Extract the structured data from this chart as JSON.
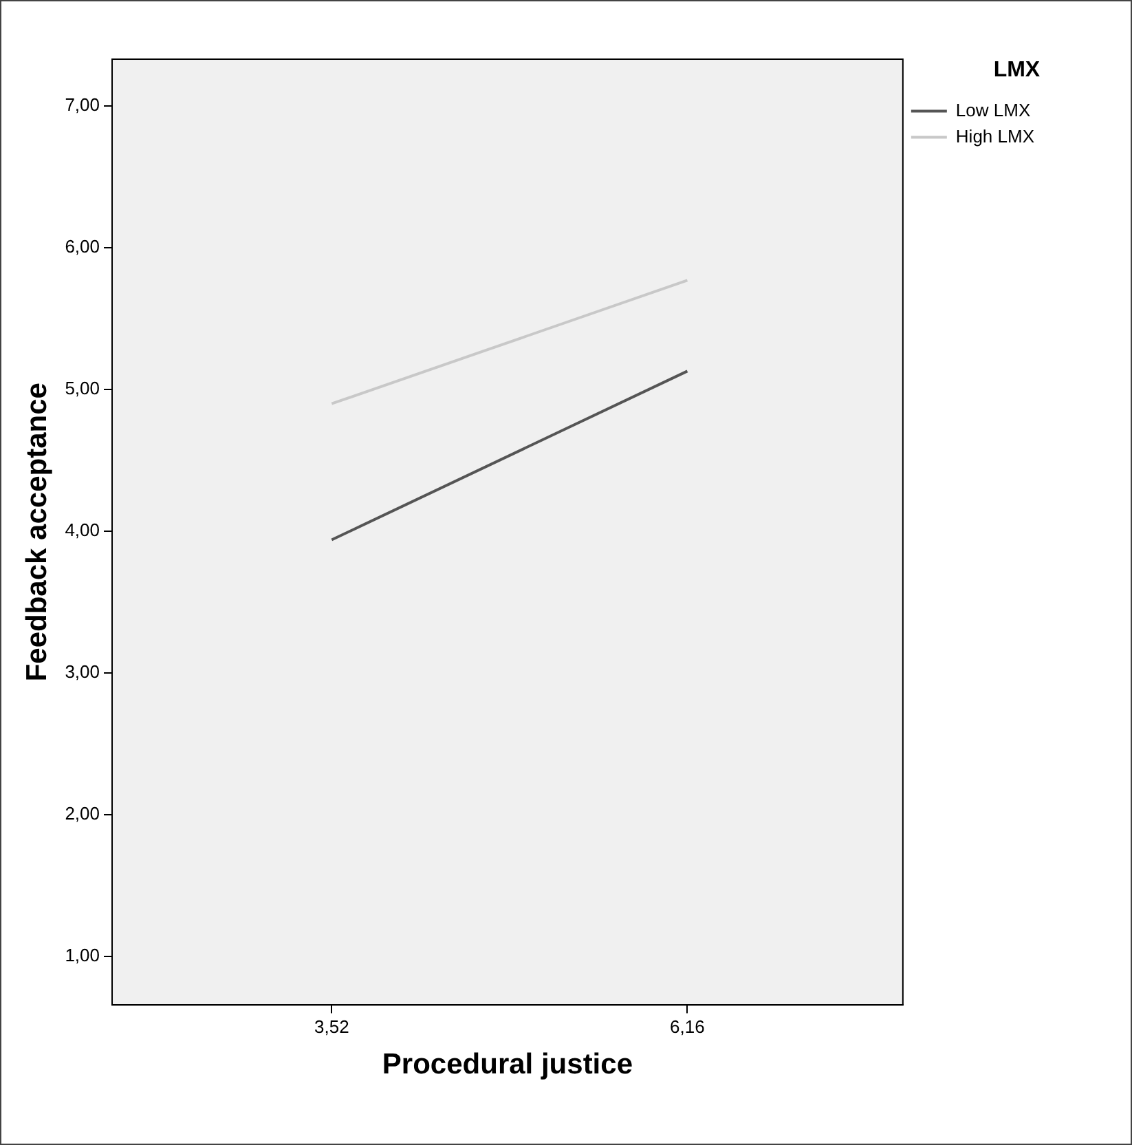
{
  "chart_data": {
    "type": "line",
    "xlabel": "Procedural justice",
    "ylabel": "Feedback acceptance",
    "legend_title": "LMX",
    "legend": "top right",
    "grid": false,
    "marker": "none",
    "line_style": "solid",
    "xlim": [
      1.89,
      7.76
    ],
    "xticks": [
      {
        "value": 3.52,
        "label": "3,52"
      },
      {
        "value": 6.16,
        "label": "6,16"
      }
    ],
    "ylim": [
      0.66,
      7.33
    ],
    "yticks": [
      {
        "value": 1,
        "label": "1,00"
      },
      {
        "value": 2,
        "label": "2,00"
      },
      {
        "value": 3,
        "label": "3,00"
      },
      {
        "value": 4,
        "label": "4,00"
      },
      {
        "value": 5,
        "label": "5,00"
      },
      {
        "value": 6,
        "label": "6,00"
      },
      {
        "value": 7,
        "label": "7,00"
      }
    ],
    "x": [
      3.52,
      6.16
    ],
    "series": [
      {
        "name": "Low LMX",
        "color": "#555555",
        "values": [
          3.94,
          5.13
        ]
      },
      {
        "name": "High LMX",
        "color": "#c8c8c8",
        "values": [
          4.9,
          5.77
        ]
      }
    ]
  }
}
